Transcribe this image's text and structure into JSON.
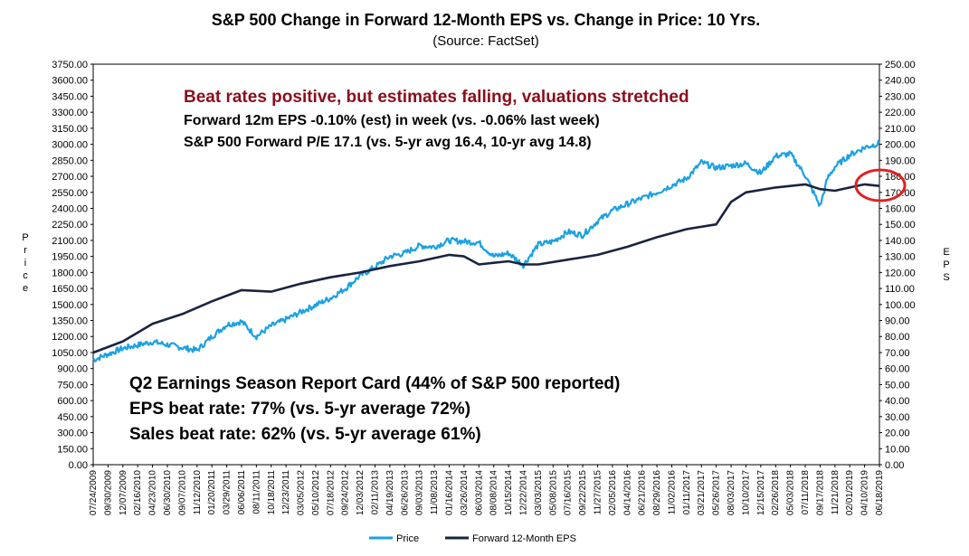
{
  "chart_data": {
    "type": "line",
    "title": "S&P 500 Change in Forward 12-Month EPS vs. Change in Price: 10 Yrs.",
    "subtitle": "(Source: FactSet)",
    "ylabel_left": "Price",
    "ylabel_right": "EPS",
    "ylim_left": [
      0,
      3750
    ],
    "ylim_right": [
      0,
      250
    ],
    "left_ticks": [
      "0.00",
      "150.00",
      "300.00",
      "450.00",
      "600.00",
      "750.00",
      "900.00",
      "1050.00",
      "1200.00",
      "1350.00",
      "1500.00",
      "1650.00",
      "1800.00",
      "1950.00",
      "2100.00",
      "2250.00",
      "2400.00",
      "2550.00",
      "2700.00",
      "2850.00",
      "3000.00",
      "3150.00",
      "3300.00",
      "3450.00",
      "3600.00",
      "3750.00"
    ],
    "right_ticks": [
      "0.00",
      "10.00",
      "20.00",
      "30.00",
      "40.00",
      "50.00",
      "60.00",
      "70.00",
      "80.00",
      "90.00",
      "100.00",
      "110.00",
      "120.00",
      "130.00",
      "140.00",
      "150.00",
      "160.00",
      "170.00",
      "180.00",
      "190.00",
      "200.00",
      "210.00",
      "220.00",
      "230.00",
      "240.00",
      "250.00"
    ],
    "x_ticks": [
      "07/24/2009",
      "09/30/2009",
      "12/07/2009",
      "02/16/2010",
      "04/23/2010",
      "06/30/2010",
      "09/07/2010",
      "11/12/2010",
      "01/20/2011",
      "03/29/2011",
      "06/06/2011",
      "08/11/2011",
      "10/18/2011",
      "12/23/2011",
      "03/05/2012",
      "05/10/2012",
      "07/18/2012",
      "09/24/2012",
      "12/03/2012",
      "02/11/2013",
      "04/19/2013",
      "06/26/2013",
      "09/03/2013",
      "11/08/2013",
      "01/16/2014",
      "03/26/2014",
      "06/03/2014",
      "08/08/2014",
      "10/15/2014",
      "12/22/2014",
      "03/03/2015",
      "05/08/2015",
      "07/16/2015",
      "09/22/2015",
      "11/27/2015",
      "02/05/2016",
      "04/14/2016",
      "06/21/2016",
      "08/29/2016",
      "11/02/2016",
      "01/11/2017",
      "03/21/2017",
      "05/26/2017",
      "08/03/2017",
      "10/10/2017",
      "12/15/2017",
      "02/26/2018",
      "05/03/2018",
      "07/11/2018",
      "09/17/2018",
      "11/21/2018",
      "02/01/2019",
      "04/10/2019",
      "06/18/2019"
    ],
    "series": [
      {
        "name": "Price",
        "axis": "left",
        "color": "#1ba1e2",
        "x": [
          0,
          2,
          4,
          7,
          8,
          9,
          10,
          11,
          12,
          13,
          14,
          16,
          17,
          18,
          19,
          20,
          21,
          22,
          23,
          24,
          25,
          26,
          27,
          28,
          29,
          30,
          31,
          32,
          33,
          34,
          35,
          36,
          38,
          40,
          41,
          42,
          44,
          45,
          46,
          47,
          48,
          49,
          49.5,
          50,
          51,
          52,
          53
        ],
        "values": [
          980,
          1090,
          1150,
          1070,
          1200,
          1310,
          1340,
          1200,
          1300,
          1360,
          1430,
          1560,
          1650,
          1770,
          1850,
          1950,
          1980,
          2050,
          2040,
          2100,
          2090,
          2080,
          1950,
          1980,
          1870,
          2060,
          2090,
          2180,
          2150,
          2280,
          2380,
          2440,
          2550,
          2680,
          2830,
          2780,
          2820,
          2730,
          2890,
          2910,
          2710,
          2420,
          2680,
          2790,
          2900,
          2970,
          3010
        ]
      },
      {
        "name": "Forward 12-Month EPS",
        "axis": "right",
        "color": "#1a2440",
        "x": [
          0,
          2,
          4,
          6,
          8,
          10,
          12,
          14,
          16,
          18,
          20,
          22,
          24,
          25,
          26,
          27,
          28,
          29,
          30,
          32,
          34,
          36,
          38,
          40,
          42,
          43,
          44,
          46,
          48,
          49,
          50,
          51,
          52,
          53
        ],
        "values": [
          70,
          77,
          88,
          94,
          102,
          109,
          108,
          113,
          117,
          120,
          124,
          127,
          131,
          130,
          125,
          126,
          127,
          125,
          125,
          128,
          131,
          136,
          142,
          147,
          150,
          164,
          170,
          173,
          175,
          172,
          171,
          173,
          175,
          174
        ]
      }
    ],
    "legend": [
      "Price",
      "Forward 12-Month EPS"
    ],
    "legend_position": "bottom",
    "annotations": {
      "headline": "Beat rates positive, but estimates falling, valuations stretched",
      "line1": "Forward 12m EPS -0.10% (est) in week (vs. -0.06% last week)",
      "line2": "S&P 500 Forward P/E 17.1 (vs. 5-yr avg 16.4, 10-yr avg 14.8)",
      "report1": "Q2 Earnings Season Report Card (44% of S&P 500 reported)",
      "report2": "EPS beat rate: 77% (vs. 5-yr average 72%)",
      "report3": "Sales beat rate: 62% (vs. 5-yr average 61%)"
    },
    "highlight_color": "#e02020"
  }
}
